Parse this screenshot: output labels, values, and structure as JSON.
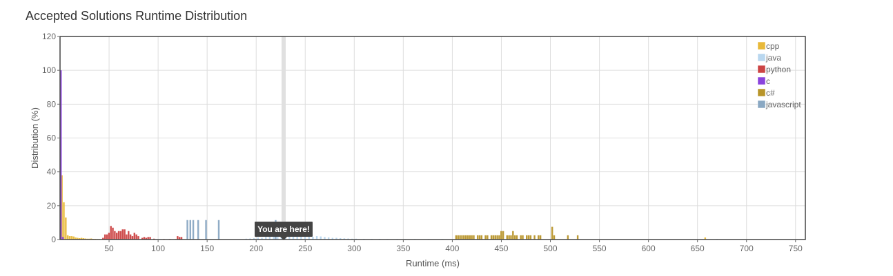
{
  "page": {
    "title": "Accepted Solutions Runtime Distribution"
  },
  "chart_data": {
    "type": "bar",
    "title": "Accepted Solutions Runtime Distribution",
    "xlabel": "Runtime (ms)",
    "ylabel": "Distribution (%)",
    "xlim": [
      0,
      760
    ],
    "ylim": [
      0,
      120
    ],
    "xticks": [
      50,
      100,
      150,
      200,
      250,
      300,
      350,
      400,
      450,
      500,
      550,
      600,
      650,
      700,
      750
    ],
    "yticks": [
      0,
      20,
      40,
      60,
      80,
      100,
      120
    ],
    "grid": true,
    "legend_position": "top-right",
    "marker": {
      "x": 228,
      "label": "You are here!",
      "line_color": "#e0e0e0",
      "label_bg": "#444444"
    },
    "bar_width": 2,
    "series": [
      {
        "name": "cpp",
        "color": "#e8b93a",
        "points": [
          [
            2,
            38
          ],
          [
            4,
            22
          ],
          [
            6,
            13
          ],
          [
            8,
            2.5
          ],
          [
            10,
            2
          ],
          [
            12,
            2
          ],
          [
            14,
            1.8
          ],
          [
            16,
            1.2
          ],
          [
            18,
            1
          ],
          [
            20,
            0.8
          ],
          [
            22,
            1
          ],
          [
            24,
            0.8
          ],
          [
            26,
            0.6
          ],
          [
            28,
            0.5
          ],
          [
            30,
            0.5
          ],
          [
            32,
            0.6
          ],
          [
            34,
            0.4
          ],
          [
            36,
            0.4
          ],
          [
            38,
            0.3
          ],
          [
            40,
            0.3
          ],
          [
            44,
            0.3
          ],
          [
            48,
            0.2
          ],
          [
            56,
            0.2
          ],
          [
            64,
            0.2
          ],
          [
            72,
            0.2
          ],
          [
            80,
            0.2
          ],
          [
            96,
            0.2
          ],
          [
            104,
            0.2
          ],
          [
            118,
            0.3
          ],
          [
            124,
            0.2
          ],
          [
            138,
            0.2
          ],
          [
            168,
            0.2
          ],
          [
            184,
            0.2
          ],
          [
            232,
            0.2
          ],
          [
            262,
            0.2
          ],
          [
            298,
            0.2
          ],
          [
            332,
            0.2
          ],
          [
            368,
            0.2
          ],
          [
            418,
            0.2
          ],
          [
            464,
            0.2
          ],
          [
            512,
            0.2
          ],
          [
            568,
            0.2
          ],
          [
            612,
            0.2
          ],
          [
            658,
            1.2
          ],
          [
            712,
            0.2
          ],
          [
            748,
            0.2
          ]
        ]
      },
      {
        "name": "java",
        "color": "#b9d7ef",
        "points": [
          [
            190,
            0.5
          ],
          [
            194,
            0.6
          ],
          [
            198,
            0.8
          ],
          [
            202,
            1.2
          ],
          [
            206,
            1
          ],
          [
            210,
            1.5
          ],
          [
            214,
            2
          ],
          [
            218,
            1.8
          ],
          [
            222,
            1.5
          ],
          [
            226,
            2
          ],
          [
            230,
            2
          ],
          [
            234,
            1.8
          ],
          [
            238,
            2
          ],
          [
            242,
            2
          ],
          [
            246,
            2.2
          ],
          [
            250,
            2.2
          ],
          [
            254,
            2
          ],
          [
            258,
            1.6
          ],
          [
            262,
            2
          ],
          [
            266,
            1.8
          ],
          [
            270,
            1.5
          ],
          [
            274,
            1.3
          ],
          [
            278,
            1
          ],
          [
            282,
            1
          ],
          [
            286,
            0.8
          ],
          [
            290,
            0.7
          ],
          [
            294,
            0.6
          ],
          [
            298,
            0.5
          ],
          [
            302,
            0.5
          ],
          [
            310,
            0.4
          ],
          [
            318,
            0.4
          ],
          [
            326,
            0.4
          ],
          [
            334,
            0.3
          ],
          [
            344,
            0.3
          ],
          [
            352,
            0.3
          ],
          [
            362,
            0.3
          ],
          [
            376,
            0.3
          ],
          [
            390,
            0.3
          ],
          [
            404,
            0.2
          ],
          [
            420,
            0.2
          ],
          [
            440,
            0.2
          ],
          [
            470,
            0.2
          ],
          [
            500,
            0.2
          ],
          [
            540,
            0.2
          ],
          [
            590,
            0.2
          ],
          [
            630,
            0.2
          ],
          [
            670,
            0.3
          ]
        ]
      },
      {
        "name": "python",
        "color": "#cc4444",
        "points": [
          [
            44,
            1
          ],
          [
            46,
            3
          ],
          [
            48,
            3
          ],
          [
            50,
            4
          ],
          [
            52,
            8
          ],
          [
            54,
            7
          ],
          [
            56,
            5
          ],
          [
            58,
            4
          ],
          [
            60,
            5
          ],
          [
            62,
            5
          ],
          [
            64,
            6
          ],
          [
            66,
            6
          ],
          [
            68,
            3
          ],
          [
            70,
            5
          ],
          [
            72,
            3
          ],
          [
            74,
            2
          ],
          [
            76,
            4
          ],
          [
            78,
            3
          ],
          [
            80,
            2
          ],
          [
            84,
            1
          ],
          [
            86,
            1.5
          ],
          [
            88,
            1
          ],
          [
            90,
            1.5
          ],
          [
            92,
            1.5
          ],
          [
            96,
            0.5
          ],
          [
            106,
            0.3
          ],
          [
            112,
            0.3
          ],
          [
            120,
            2
          ],
          [
            122,
            1.5
          ],
          [
            124,
            1.5
          ]
        ]
      },
      {
        "name": "c",
        "color": "#8a44dd",
        "points": [
          [
            1,
            100
          ],
          [
            3,
            1.5
          ]
        ]
      },
      {
        "name": "c#",
        "color": "#b8952a",
        "points": [
          [
            404,
            2.5
          ],
          [
            406,
            2.5
          ],
          [
            408,
            2.5
          ],
          [
            410,
            2.5
          ],
          [
            412,
            2.5
          ],
          [
            414,
            2.5
          ],
          [
            416,
            2.5
          ],
          [
            418,
            2.5
          ],
          [
            420,
            2.5
          ],
          [
            422,
            2.5
          ],
          [
            426,
            2.5
          ],
          [
            428,
            2.5
          ],
          [
            430,
            2.5
          ],
          [
            434,
            2.5
          ],
          [
            436,
            2.5
          ],
          [
            440,
            2.5
          ],
          [
            442,
            2.5
          ],
          [
            444,
            2.5
          ],
          [
            446,
            2.5
          ],
          [
            448,
            2.5
          ],
          [
            450,
            5
          ],
          [
            452,
            5
          ],
          [
            456,
            2.5
          ],
          [
            458,
            2.5
          ],
          [
            460,
            2.5
          ],
          [
            462,
            5
          ],
          [
            464,
            2.5
          ],
          [
            466,
            2.5
          ],
          [
            470,
            2.5
          ],
          [
            472,
            2.5
          ],
          [
            476,
            2.5
          ],
          [
            478,
            2.5
          ],
          [
            480,
            2.5
          ],
          [
            484,
            2.5
          ],
          [
            488,
            2.5
          ],
          [
            490,
            2.5
          ],
          [
            502,
            7.5
          ],
          [
            504,
            2.5
          ],
          [
            518,
            2.5
          ],
          [
            528,
            2.5
          ]
        ]
      },
      {
        "name": "javascript",
        "color": "#8aa8c3",
        "points": [
          [
            130,
            11.5
          ],
          [
            133,
            11.5
          ],
          [
            136,
            11.5
          ],
          [
            141,
            11.5
          ],
          [
            149,
            11.5
          ],
          [
            162,
            11.5
          ],
          [
            220,
            11.5
          ]
        ]
      }
    ]
  }
}
